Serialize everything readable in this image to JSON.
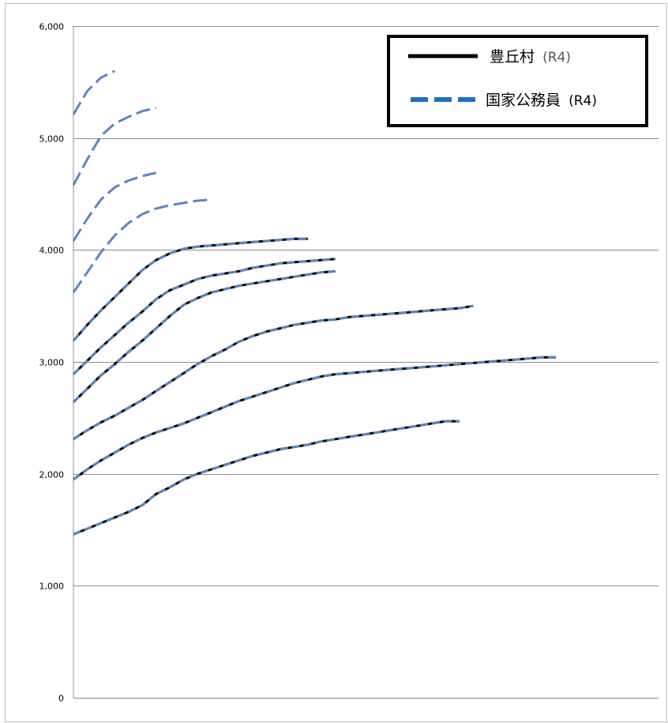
{
  "chart_data": {
    "type": "line",
    "title": "",
    "xlabel": "",
    "ylabel": "",
    "ylim": [
      0,
      6000
    ],
    "yticks": [
      0,
      1000,
      2000,
      3000,
      4000,
      5000,
      6000
    ],
    "ytick_labels": [
      "0",
      "1,000",
      "2,000",
      "3,000",
      "4,000",
      "5,000",
      "6,000"
    ],
    "grid": "horizontal",
    "legend_position": "top-right",
    "legend": [
      {
        "name": "豊丘村",
        "note": "(R4)",
        "style": "solid",
        "color": "#000000"
      },
      {
        "name": "国家公務員",
        "note": "(R4)",
        "style": "dashed",
        "color": "#1f6fbf"
      }
    ],
    "series": [
      {
        "group": "豊丘村",
        "x": [
          0,
          1,
          2,
          3,
          4,
          5,
          6,
          7,
          8,
          9,
          10,
          11,
          12,
          13,
          14,
          15,
          16,
          17,
          18,
          19,
          20,
          21,
          22,
          23,
          24,
          25,
          26,
          27,
          28,
          29,
          30,
          31,
          32,
          33,
          34,
          35
        ],
        "values": [
          1460,
          1510,
          1560,
          1610,
          1660,
          1720,
          1820,
          1880,
          1950,
          2000,
          2040,
          2080,
          2120,
          2160,
          2190,
          2220,
          2240,
          2260,
          2290,
          2310,
          2330,
          2350,
          2370,
          2390,
          2410,
          2430,
          2450,
          2470,
          2470,
          null,
          null,
          null,
          null,
          null,
          null,
          null
        ]
      },
      {
        "group": "豊丘村",
        "x": [
          0,
          1,
          2,
          3,
          4,
          5,
          6,
          7,
          8,
          9,
          10,
          11,
          12,
          13,
          14,
          15,
          16,
          17,
          18,
          19,
          20,
          21,
          22,
          23,
          24,
          25,
          26,
          27,
          28,
          29,
          30,
          31,
          32,
          33,
          34,
          35
        ],
        "values": [
          1950,
          2040,
          2120,
          2190,
          2260,
          2320,
          2370,
          2410,
          2450,
          2500,
          2550,
          2600,
          2650,
          2690,
          2730,
          2770,
          2810,
          2840,
          2870,
          2890,
          2900,
          2910,
          2920,
          2930,
          2940,
          2950,
          2960,
          2970,
          2980,
          2990,
          3000,
          3010,
          3020,
          3030,
          3040,
          3040
        ]
      },
      {
        "group": "豊丘村",
        "x": [
          0,
          1,
          2,
          3,
          4,
          5,
          6,
          7,
          8,
          9,
          10,
          11,
          12,
          13,
          14,
          15,
          16,
          17,
          18,
          19,
          20,
          21,
          22,
          23,
          24,
          25,
          26,
          27,
          28,
          29,
          30,
          31,
          32,
          33,
          34,
          35
        ],
        "values": [
          2310,
          2390,
          2460,
          2520,
          2590,
          2660,
          2740,
          2820,
          2900,
          2980,
          3050,
          3110,
          3180,
          3230,
          3270,
          3300,
          3330,
          3350,
          3370,
          3380,
          3400,
          3410,
          3420,
          3430,
          3440,
          3450,
          3460,
          3470,
          3480,
          3500,
          null,
          null,
          null,
          null,
          null,
          null
        ]
      },
      {
        "group": "豊丘村",
        "x": [
          0,
          1,
          2,
          3,
          4,
          5,
          6,
          7,
          8,
          9,
          10,
          11,
          12,
          13,
          14,
          15,
          16,
          17,
          18,
          19,
          20,
          21,
          22,
          23,
          24,
          25,
          26,
          27,
          28,
          29,
          30,
          31,
          32,
          33,
          34,
          35
        ],
        "values": [
          2640,
          2760,
          2880,
          2980,
          3090,
          3190,
          3300,
          3410,
          3510,
          3570,
          3620,
          3650,
          3680,
          3700,
          3720,
          3740,
          3760,
          3780,
          3800,
          3810,
          null,
          null,
          null,
          null,
          null,
          null,
          null,
          null,
          null,
          null,
          null,
          null,
          null,
          null,
          null,
          null
        ]
      },
      {
        "group": "豊丘村",
        "x": [
          0,
          1,
          2,
          3,
          4,
          5,
          6,
          7,
          8,
          9,
          10,
          11,
          12,
          13,
          14,
          15,
          16,
          17,
          18,
          19,
          20,
          21,
          22,
          23,
          24,
          25,
          26,
          27,
          28,
          29,
          30,
          31,
          32,
          33,
          34,
          35
        ],
        "values": [
          2890,
          3010,
          3130,
          3240,
          3350,
          3450,
          3560,
          3640,
          3690,
          3740,
          3770,
          3790,
          3810,
          3840,
          3860,
          3880,
          3890,
          3900,
          3910,
          3920,
          null,
          null,
          null,
          null,
          null,
          null,
          null,
          null,
          null,
          null,
          null,
          null,
          null,
          null,
          null,
          null
        ]
      },
      {
        "group": "豊丘村",
        "x": [
          0,
          1,
          2,
          3,
          4,
          5,
          6,
          7,
          8,
          9,
          10,
          11,
          12,
          13,
          14,
          15,
          16,
          17,
          18,
          19,
          20,
          21,
          22,
          23,
          24,
          25,
          26,
          27,
          28,
          29,
          30,
          31,
          32,
          33,
          34,
          35
        ],
        "values": [
          3190,
          3330,
          3460,
          3580,
          3700,
          3820,
          3910,
          3970,
          4010,
          4030,
          4040,
          4050,
          4060,
          4070,
          4080,
          4090,
          4100,
          4100,
          null,
          null,
          null,
          null,
          null,
          null,
          null,
          null,
          null,
          null,
          null,
          null,
          null,
          null,
          null,
          null,
          null,
          null
        ]
      },
      {
        "group": "国家公務員",
        "x": [
          0,
          1,
          2,
          3,
          4,
          5,
          6,
          7,
          8,
          9,
          10,
          11,
          12,
          13,
          14,
          15,
          16,
          17,
          18,
          19,
          20,
          21,
          22,
          23,
          24,
          25,
          26,
          27,
          28,
          29,
          30,
          31,
          32,
          33,
          34,
          35
        ],
        "values": [
          3620,
          3800,
          3980,
          4130,
          4240,
          4320,
          4370,
          4400,
          4420,
          4440,
          4450,
          null,
          null,
          null,
          null,
          null,
          null,
          null,
          null,
          null,
          null,
          null,
          null,
          null,
          null,
          null,
          null,
          null,
          null,
          null,
          null,
          null,
          null,
          null,
          null,
          null
        ]
      },
      {
        "group": "国家公務員",
        "x": [
          0,
          1,
          2,
          3,
          4,
          5,
          6,
          7,
          8,
          9,
          10,
          11,
          12,
          13,
          14,
          15,
          16,
          17,
          18,
          19,
          20,
          21,
          22,
          23,
          24,
          25,
          26,
          27,
          28,
          29,
          30,
          31,
          32,
          33,
          34,
          35
        ],
        "values": [
          4080,
          4280,
          4450,
          4560,
          4620,
          4660,
          4690,
          null,
          null,
          null,
          null,
          null,
          null,
          null,
          null,
          null,
          null,
          null,
          null,
          null,
          null,
          null,
          null,
          null,
          null,
          null,
          null,
          null,
          null,
          null,
          null,
          null,
          null,
          null,
          null,
          null
        ]
      },
      {
        "group": "国家公務員",
        "x": [
          0,
          1,
          2,
          3,
          4,
          5,
          6,
          7,
          8,
          9,
          10,
          11,
          12,
          13,
          14,
          15,
          16,
          17,
          18,
          19,
          20,
          21,
          22,
          23,
          24,
          25,
          26,
          27,
          28,
          29,
          30,
          31,
          32,
          33,
          34,
          35
        ],
        "values": [
          4580,
          4810,
          5020,
          5130,
          5190,
          5240,
          5270,
          null,
          null,
          null,
          null,
          null,
          null,
          null,
          null,
          null,
          null,
          null,
          null,
          null,
          null,
          null,
          null,
          null,
          null,
          null,
          null,
          null,
          null,
          null,
          null,
          null,
          null,
          null,
          null,
          null
        ]
      },
      {
        "group": "国家公務員",
        "x": [
          0,
          1,
          2,
          3,
          4,
          5,
          6,
          7,
          8,
          9,
          10,
          11,
          12,
          13,
          14,
          15,
          16,
          17,
          18,
          19,
          20,
          21,
          22,
          23,
          24,
          25,
          26,
          27,
          28,
          29,
          30,
          31,
          32,
          33,
          34,
          35
        ],
        "values": [
          5210,
          5420,
          5540,
          5600,
          null,
          null,
          null,
          null,
          null,
          null,
          null,
          null,
          null,
          null,
          null,
          null,
          null,
          null,
          null,
          null,
          null,
          null,
          null,
          null,
          null,
          null,
          null,
          null,
          null,
          null,
          null,
          null,
          null,
          null,
          null,
          null
        ]
      }
    ]
  }
}
